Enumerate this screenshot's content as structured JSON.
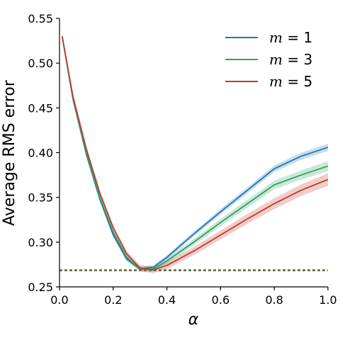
{
  "chart_data": {
    "type": "line",
    "title": "",
    "xlabel": "α",
    "ylabel": "Average RMS error",
    "xlim": [
      0.0,
      1.0
    ],
    "ylim": [
      0.25,
      0.55
    ],
    "xticks": [
      "0.0",
      "0.2",
      "0.4",
      "0.6",
      "0.8",
      "1.0"
    ],
    "xtick_values": [
      0.0,
      0.2,
      0.4,
      0.6,
      0.8,
      1.0
    ],
    "yticks": [
      "0.25",
      "0.30",
      "0.35",
      "0.40",
      "0.45",
      "0.50",
      "0.55"
    ],
    "ytick_values": [
      0.25,
      0.3,
      0.35,
      0.4,
      0.45,
      0.5,
      0.55
    ],
    "grid": false,
    "legend_position": "top-right",
    "series": [
      {
        "name": "m = 1",
        "legend_m": "1",
        "color": "#1f77b4",
        "x": [
          0.01,
          0.05,
          0.1,
          0.15,
          0.2,
          0.25,
          0.3,
          0.35,
          0.4,
          0.5,
          0.6,
          0.7,
          0.8,
          0.9,
          1.0
        ],
        "y": [
          0.53,
          0.46,
          0.398,
          0.348,
          0.308,
          0.281,
          0.27,
          0.272,
          0.283,
          0.309,
          0.334,
          0.358,
          0.382,
          0.396,
          0.406
        ],
        "band": 0.003
      },
      {
        "name": "m = 3",
        "legend_m": "3",
        "color": "#2ca25f",
        "x": [
          0.01,
          0.05,
          0.1,
          0.15,
          0.2,
          0.25,
          0.3,
          0.35,
          0.4,
          0.5,
          0.6,
          0.7,
          0.8,
          0.9,
          1.0
        ],
        "y": [
          0.53,
          0.461,
          0.4,
          0.35,
          0.311,
          0.283,
          0.27,
          0.27,
          0.279,
          0.3,
          0.322,
          0.343,
          0.364,
          0.375,
          0.385
        ],
        "band": 0.004
      },
      {
        "name": "m = 5",
        "legend_m": "5",
        "color": "#c0392b",
        "x": [
          0.01,
          0.05,
          0.1,
          0.15,
          0.2,
          0.25,
          0.3,
          0.35,
          0.4,
          0.5,
          0.6,
          0.7,
          0.8,
          0.9,
          1.0
        ],
        "y": [
          0.53,
          0.463,
          0.404,
          0.355,
          0.316,
          0.287,
          0.271,
          0.269,
          0.274,
          0.29,
          0.308,
          0.326,
          0.343,
          0.358,
          0.37
        ],
        "band": 0.005
      }
    ],
    "reference_lines": [
      {
        "y": 0.2685,
        "color": "#1f77b4",
        "style": "dashed"
      },
      {
        "y": 0.268,
        "color": "#2ca25f",
        "style": "dashed"
      },
      {
        "y": 0.269,
        "color": "#c0392b",
        "style": "dashed"
      }
    ]
  }
}
